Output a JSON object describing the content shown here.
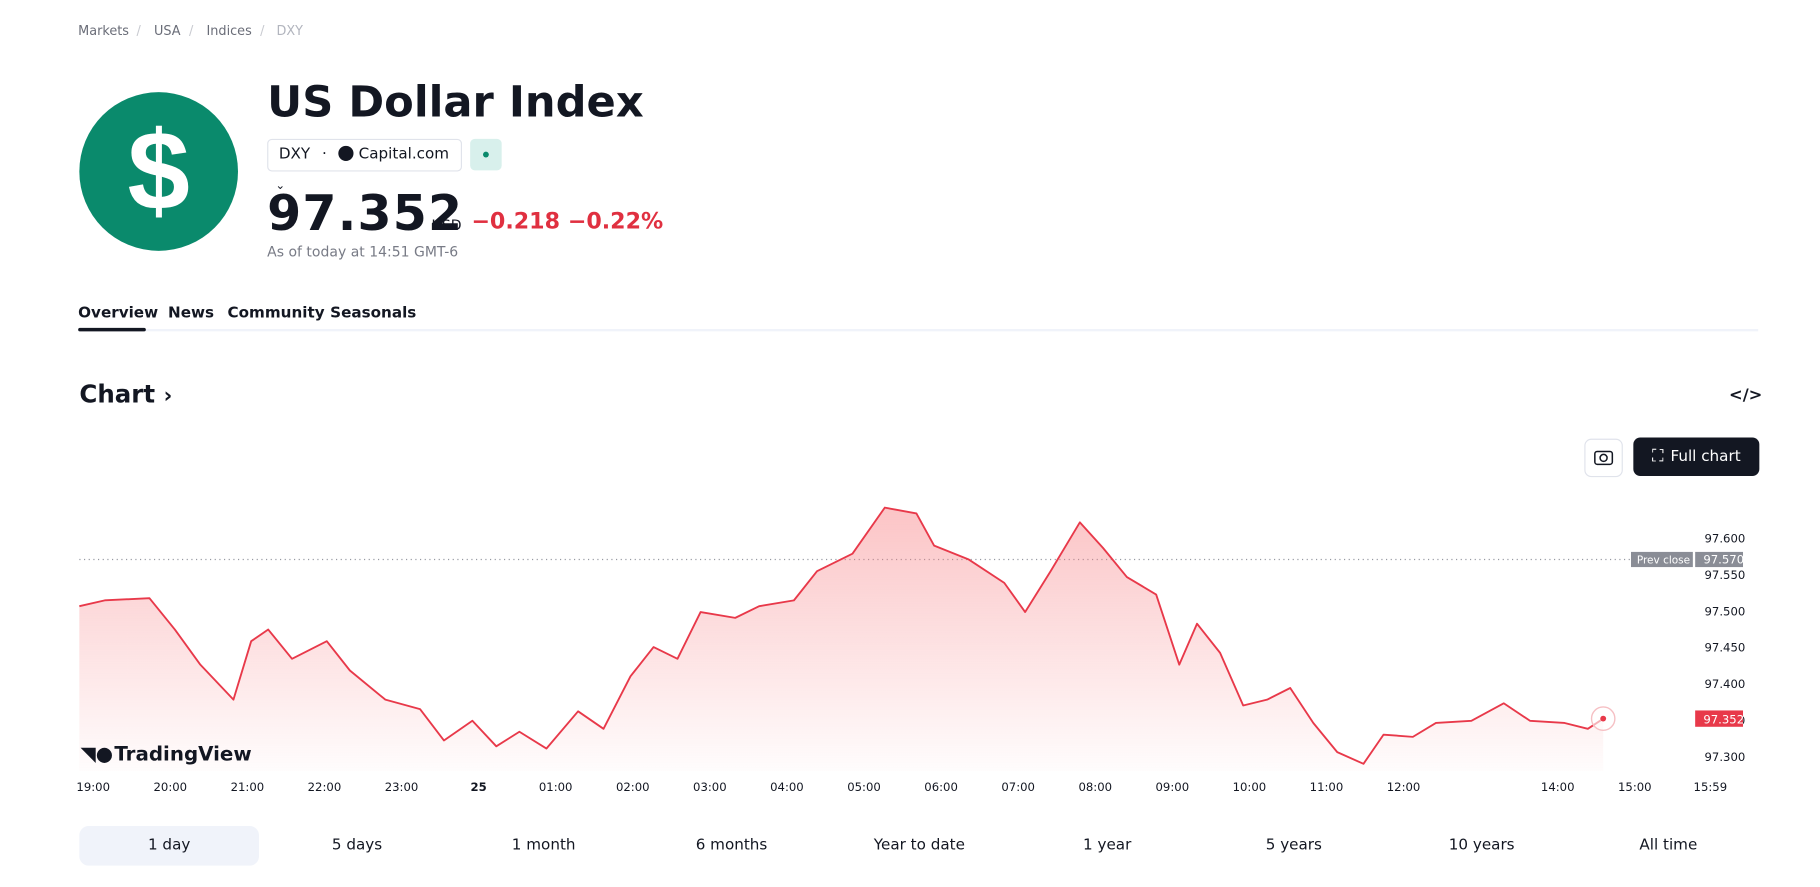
{
  "breadcrumbs": [
    "Markets",
    "USA",
    "Indices",
    "DXY"
  ],
  "header": {
    "title": "US Dollar Index",
    "symbol": "DXY",
    "exchange": "Capital.com",
    "price": "97.352",
    "currency": "USD",
    "change": "−0.218",
    "change_percent": "−0.22%",
    "as_of": "As of today at 14:51 GMT-6"
  },
  "tabs": [
    "Overview",
    "News",
    "Community",
    "Seasonals"
  ],
  "section_title": "Chart",
  "full_chart": "Full chart",
  "ranges": [
    "1 day",
    "5 days",
    "1 month",
    "6 months",
    "Year to date",
    "1 year",
    "5 years",
    "10 years",
    "All time"
  ],
  "chart_data": {
    "type": "line",
    "color": "#e8394a",
    "watermark": "TradingView",
    "x": [
      -0.18,
      0.15,
      0.73,
      1.06,
      1.39,
      1.82,
      2.05,
      2.27,
      2.58,
      3.03,
      3.33,
      3.79,
      4.24,
      4.55,
      4.92,
      5.23,
      5.53,
      5.88,
      6.29,
      6.62,
      6.97,
      7.27,
      7.58,
      7.88,
      8.33,
      8.64,
      9.09,
      9.39,
      9.85,
      10.27,
      10.68,
      10.91,
      11.36,
      11.82,
      12.09,
      12.42,
      12.8,
      13.1,
      13.41,
      13.79,
      14.09,
      14.32,
      14.62,
      14.92,
      15.23,
      15.53,
      15.83,
      16.14,
      16.48,
      16.74,
      17.12,
      17.42,
      17.88,
      18.3,
      18.64,
      19.09,
      19.39,
      19.59
    ],
    "values": [
      97.506,
      97.514,
      97.517,
      97.474,
      97.426,
      97.378,
      97.458,
      97.474,
      97.434,
      97.458,
      97.418,
      97.378,
      97.365,
      97.322,
      97.349,
      97.314,
      97.334,
      97.311,
      97.362,
      97.338,
      97.41,
      97.45,
      97.434,
      97.498,
      97.49,
      97.506,
      97.514,
      97.554,
      97.578,
      97.641,
      97.633,
      97.589,
      97.57,
      97.538,
      97.498,
      97.554,
      97.621,
      97.586,
      97.546,
      97.522,
      97.426,
      97.482,
      97.442,
      97.37,
      97.378,
      97.394,
      97.346,
      97.306,
      97.29,
      97.33,
      97.327,
      97.346,
      97.349,
      97.373,
      97.349,
      97.346,
      97.338,
      97.352
    ],
    "xlim": [
      -0.18,
      20.98
    ],
    "xticks": [
      {
        "value": 0,
        "label": "19:00"
      },
      {
        "value": 1,
        "label": "20:00"
      },
      {
        "value": 2,
        "label": "21:00"
      },
      {
        "value": 3,
        "label": "22:00"
      },
      {
        "value": 4,
        "label": "23:00"
      },
      {
        "value": 5,
        "label": "25"
      },
      {
        "value": 6,
        "label": "01:00"
      },
      {
        "value": 7,
        "label": "02:00"
      },
      {
        "value": 8,
        "label": "03:00"
      },
      {
        "value": 9,
        "label": "04:00"
      },
      {
        "value": 10,
        "label": "05:00"
      },
      {
        "value": 11,
        "label": "06:00"
      },
      {
        "value": 12,
        "label": "07:00"
      },
      {
        "value": 13,
        "label": "08:00"
      },
      {
        "value": 14,
        "label": "09:00"
      },
      {
        "value": 15,
        "label": "10:00"
      },
      {
        "value": 16,
        "label": "11:00"
      },
      {
        "value": 17,
        "label": "12:00"
      },
      {
        "value": 19,
        "label": "14:00"
      },
      {
        "value": 20,
        "label": "15:00"
      },
      {
        "value": 20.98,
        "label": "15:59"
      }
    ],
    "ylim": [
      97.28,
      97.67
    ],
    "yticks": [
      {
        "value": 97.3,
        "label": "97.300"
      },
      {
        "value": 97.35,
        "label": "97.350"
      },
      {
        "value": 97.4,
        "label": "97.400"
      },
      {
        "value": 97.45,
        "label": "97.450"
      },
      {
        "value": 97.5,
        "label": "97.500"
      },
      {
        "value": 97.55,
        "label": "97.550"
      },
      {
        "value": 97.6,
        "label": "97.600"
      }
    ],
    "prev_close_label": "Prev close",
    "prev_close": {
      "value": 97.57,
      "label": "97.570"
    },
    "last_price": 97.352
  }
}
